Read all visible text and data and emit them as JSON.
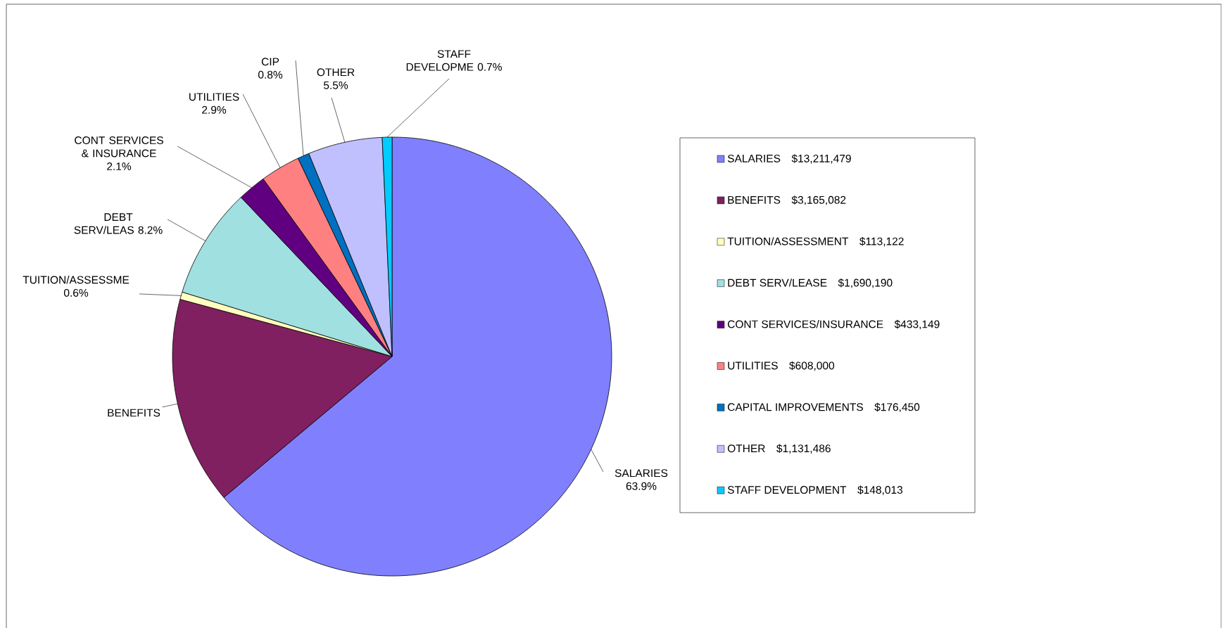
{
  "chart_data": {
    "type": "pie",
    "categories": [
      "SALARIES",
      "BENEFITS",
      "TUITION/ASSESSMENT",
      "DEBT SERV/LEASE",
      "CONT SERVICES/INSURANCE",
      "UTILITIES",
      "CAPITAL IMPROVEMENTS",
      "OTHER",
      "STAFF DEVELOPMENT"
    ],
    "values": [
      13211479,
      3165082,
      113122,
      1690190,
      433149,
      608000,
      176450,
      1131486,
      148013
    ],
    "value_labels": [
      "$13,211,479",
      "$3,165,082",
      "$113,122",
      "$1,690,190",
      "$433,149",
      "$608,000",
      "$176,450",
      "$1,131,486",
      "$148,013"
    ],
    "colors": [
      "#8080ff",
      "#802060",
      "#ffffc0",
      "#a0e0e0",
      "#600080",
      "#ff8080",
      "#0070c0",
      "#c0c0ff",
      "#00ccff"
    ],
    "annotations": [
      "SALARIES 63.9%",
      "BENEFITS",
      "TUITION/ASSESSME 0.6%",
      "DEBT SERV/LEAS 8.2%",
      "CONT SERVICES & INSURANCE 2.1%",
      "UTILITIES 2.9%",
      "CIP 0.8%",
      "OTHER 5.5%",
      "STAFF DEVELOPME 0.7%"
    ],
    "legend": "right"
  }
}
